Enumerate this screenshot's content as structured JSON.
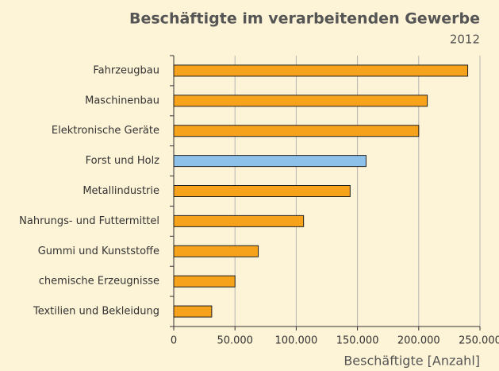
{
  "chart_data": {
    "type": "bar",
    "orientation": "horizontal",
    "title": "Beschäftigte im verarbeitenden Gewerbe",
    "subtitle": "2012",
    "x_label": "Beschäftigte [Anzahl]",
    "categories": [
      "Fahrzeugbau",
      "Maschinenbau",
      "Elektronische Geräte",
      "Forst und Holz",
      "Metallindustrie",
      "Nahrungs- und Futtermittel",
      "Gummi und Kunststoffe",
      "chemische Erzeugnisse",
      "Textilien und Bekleidung"
    ],
    "values": [
      240000,
      207000,
      200000,
      157000,
      144000,
      106000,
      69000,
      50000,
      31000
    ],
    "colors": [
      "#f7a21b",
      "#f7a21b",
      "#f7a21b",
      "#8ec1ea",
      "#f7a21b",
      "#f7a21b",
      "#f7a21b",
      "#f7a21b",
      "#f7a21b"
    ],
    "xlim": [
      0,
      250000
    ],
    "xticks": [
      0,
      {
        "value": 50000,
        "label": "50.000"
      },
      {
        "value": 100000,
        "label": "100.000"
      },
      {
        "value": 150000,
        "label": "150.000"
      },
      {
        "value": 200000,
        "label": "200.000"
      },
      {
        "value": 250000,
        "label": "250.000"
      }
    ],
    "grid": true
  }
}
